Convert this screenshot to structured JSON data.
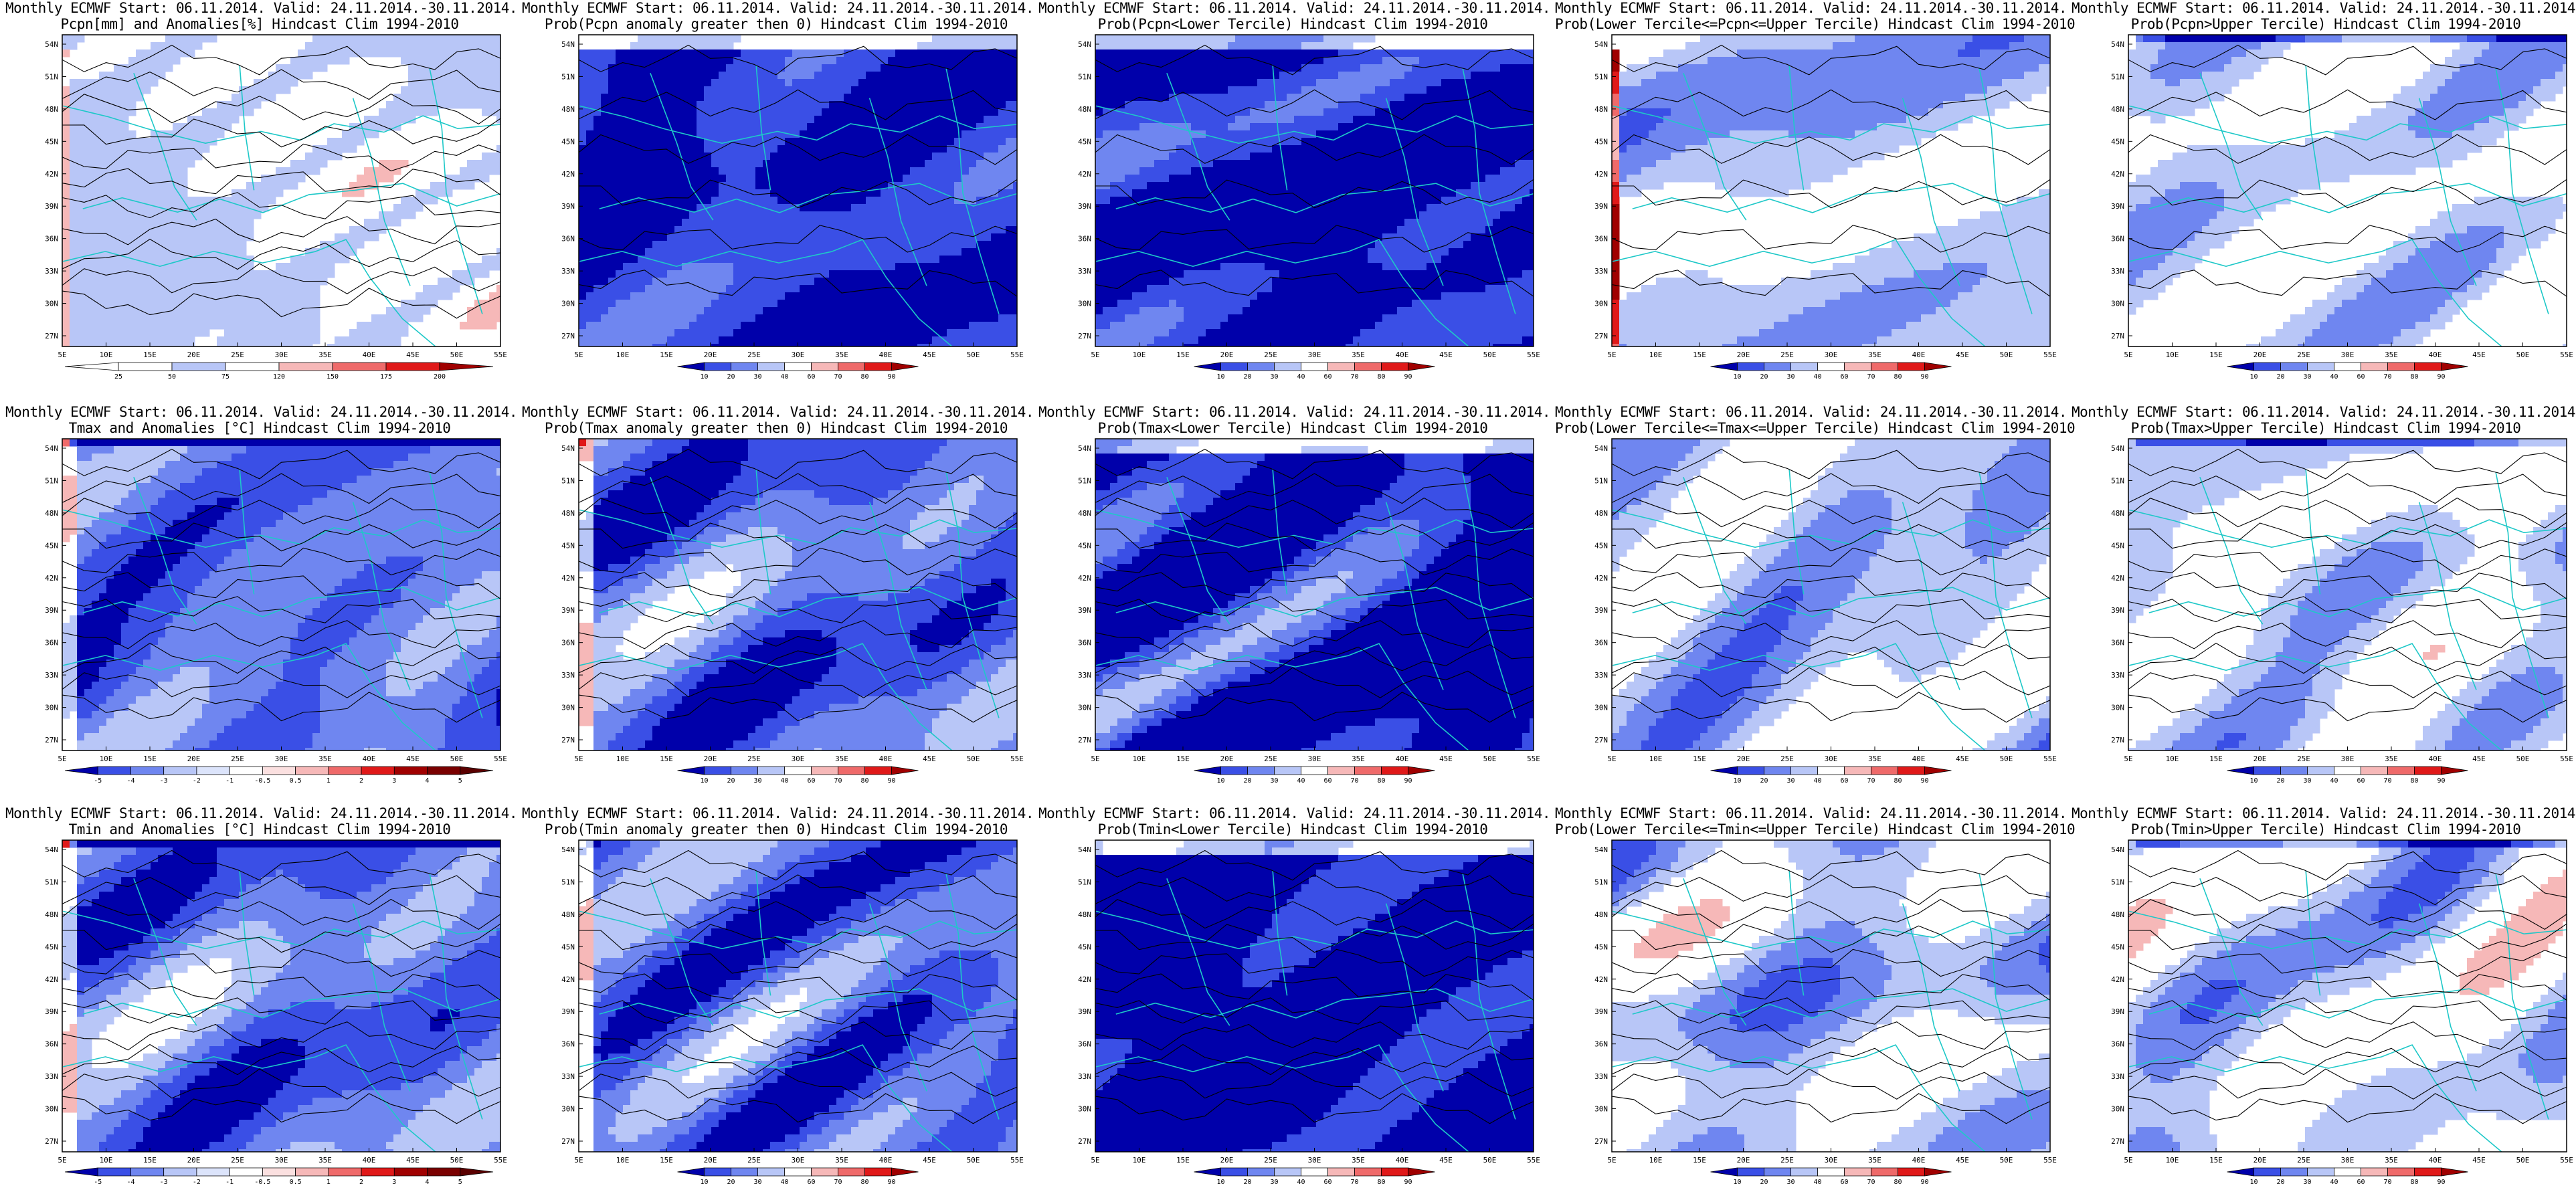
{
  "common": {
    "title_line1": "Monthly ECMWF Start: 06.11.2014. Valid: 24.11.2014.-30.11.2014.",
    "lat_labels": [
      "54N",
      "51N",
      "48N",
      "45N",
      "42N",
      "39N",
      "36N",
      "33N",
      "30N",
      "27N"
    ],
    "lon_labels": [
      "5E",
      "10E",
      "15E",
      "20E",
      "25E",
      "30E",
      "35E",
      "40E",
      "45E",
      "50E",
      "55E"
    ],
    "prob_colorbar": [
      "10",
      "20",
      "30",
      "40",
      "60",
      "70",
      "80",
      "90"
    ]
  },
  "rows": [
    {
      "name": "precipitation",
      "panels": [
        {
          "subtitle": "Pcpn[mm] and Anomalies[%] Hindcast Clim 1994-2010",
          "kind": "anomaly-precip",
          "colorbar": [
            "25",
            "50",
            "75",
            "120",
            "150",
            "175",
            "200"
          ]
        },
        {
          "subtitle": "Prob(Pcpn anomaly greater then 0) Hindcast Clim 1994-2010",
          "kind": "prob"
        },
        {
          "subtitle": "Prob(Pcpn<Lower Tercile) Hindcast Clim 1994-2010",
          "kind": "prob"
        },
        {
          "subtitle": "Prob(Lower Tercile<=Pcpn<=Upper Tercile) Hindcast Clim 1994-2010",
          "kind": "prob"
        },
        {
          "subtitle": "Prob(Pcpn>Upper Tercile) Hindcast Clim 1994-2010",
          "kind": "prob"
        }
      ]
    },
    {
      "name": "tmax",
      "panels": [
        {
          "subtitle": "Tmax and Anomalies [°C] Hindcast Clim 1994-2010",
          "kind": "anomaly-temp",
          "colorbar": [
            "-5",
            "-4",
            "-3",
            "-2",
            "-1",
            "-0.5",
            "0.5",
            "1",
            "2",
            "3",
            "4",
            "5"
          ]
        },
        {
          "subtitle": "Prob(Tmax anomaly greater then 0) Hindcast Clim 1994-2010",
          "kind": "prob"
        },
        {
          "subtitle": "Prob(Tmax<Lower Tercile) Hindcast Clim 1994-2010",
          "kind": "prob"
        },
        {
          "subtitle": "Prob(Lower Tercile<=Tmax<=Upper Tercile) Hindcast Clim 1994-2010",
          "kind": "prob"
        },
        {
          "subtitle": "Prob(Tmax>Upper Tercile) Hindcast Clim 1994-2010",
          "kind": "prob"
        }
      ]
    },
    {
      "name": "tmin",
      "panels": [
        {
          "subtitle": "Tmin and Anomalies [°C] Hindcast Clim 1994-2010",
          "kind": "anomaly-temp",
          "colorbar": [
            "-5",
            "-4",
            "-3",
            "-2",
            "-1",
            "-0.5",
            "0.5",
            "1",
            "2",
            "3",
            "4",
            "5"
          ]
        },
        {
          "subtitle": "Prob(Tmin anomaly greater then 0) Hindcast Clim 1994-2010",
          "kind": "prob"
        },
        {
          "subtitle": "Prob(Tmin<Lower Tercile) Hindcast Clim 1994-2010",
          "kind": "prob"
        },
        {
          "subtitle": "Prob(Lower Tercile<=Tmin<=Upper Tercile) Hindcast Clim 1994-2010",
          "kind": "prob"
        },
        {
          "subtitle": "Prob(Tmin>Upper Tercile) Hindcast Clim 1994-2010",
          "kind": "prob"
        }
      ]
    }
  ],
  "colors": {
    "deep_blue": "#0000aa",
    "blue": "#3a4fe6",
    "mid_blue": "#6f86f0",
    "light_blue": "#b8c6f7",
    "white": "#ffffff",
    "light_red": "#f6b8b8",
    "mid_red": "#ef6a6a",
    "red": "#e01919",
    "deep_red": "#a00000",
    "coast": "#1ec8c8",
    "contour": "#000000"
  }
}
